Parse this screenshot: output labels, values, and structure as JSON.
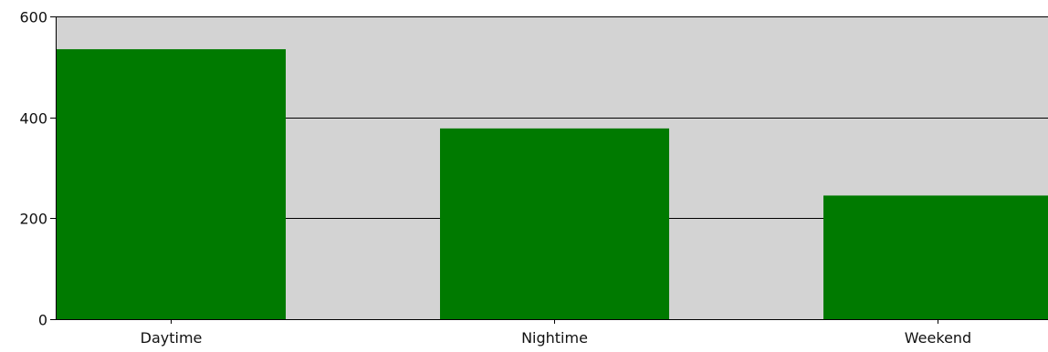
{
  "chart_data": {
    "type": "bar",
    "categories": [
      "Daytime",
      "Nightime",
      "Weekend"
    ],
    "values": [
      535,
      378,
      245
    ],
    "ylim": [
      0,
      600
    ],
    "yticks": [
      0,
      200,
      400,
      600
    ],
    "grid": true,
    "colors": {
      "bar": "#007a00",
      "plot_background": "#d3d3d3",
      "gridline": "#000000",
      "axis": "#000000",
      "text": "#111111"
    }
  }
}
